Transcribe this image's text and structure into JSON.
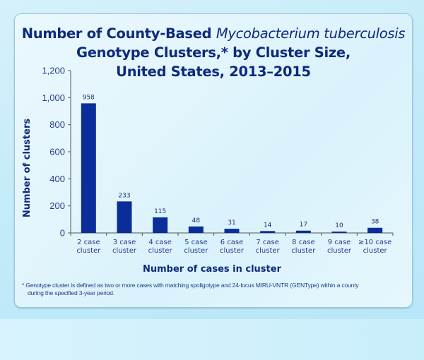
{
  "title": {
    "line1_prefix": "Number of County-Based ",
    "line1_italic": "Mycobacterium tuberculosis",
    "line2": "Genotype Clusters,* by Cluster Size,",
    "line3": "United States, 2013–2015"
  },
  "footnote": {
    "line1": "* Genotype cluster is defined as two or more cases with matching spoligotype and 24-locus MIRU-VNTR (GENType) within a county",
    "line2": "during the specified 3-year period."
  },
  "colors": {
    "bar": "#0a2d9a",
    "title": "#0d2a7c",
    "axis": "#555555",
    "tick_label": "#2a3a8a"
  },
  "chart_data": {
    "type": "bar",
    "title": "Number of County-Based Mycobacterium tuberculosis Genotype Clusters,* by Cluster Size, United States, 2013–2015",
    "xlabel": "Number of cases in cluster",
    "ylabel": "Number of clusters",
    "categories": [
      "2 case cluster",
      "3 case cluster",
      "4 case cluster",
      "5 case cluster",
      "6 case cluster",
      "7 case cluster",
      "8 case cluster",
      "9 case cluster",
      "≥10 case cluster"
    ],
    "category_lines": [
      [
        "2 case",
        "cluster"
      ],
      [
        "3 case",
        "cluster"
      ],
      [
        "4 case",
        "cluster"
      ],
      [
        "5 case",
        "cluster"
      ],
      [
        "6 case",
        "cluster"
      ],
      [
        "7 case",
        "cluster"
      ],
      [
        "8 case",
        "cluster"
      ],
      [
        "9 case",
        "cluster"
      ],
      [
        "≥10 case",
        "cluster"
      ]
    ],
    "values": [
      958,
      233,
      115,
      48,
      31,
      14,
      17,
      10,
      38
    ],
    "data_labels": [
      "958",
      "233",
      "115",
      "48",
      "31",
      "14",
      "17",
      "10",
      "38"
    ],
    "ylim": [
      0,
      1200
    ],
    "yticks": [
      0,
      200,
      400,
      600,
      800,
      1000,
      1200
    ],
    "ytick_labels": [
      "0",
      "200",
      "400",
      "600",
      "800",
      "1,000",
      "1,200"
    ],
    "grid": false,
    "legend": null
  }
}
